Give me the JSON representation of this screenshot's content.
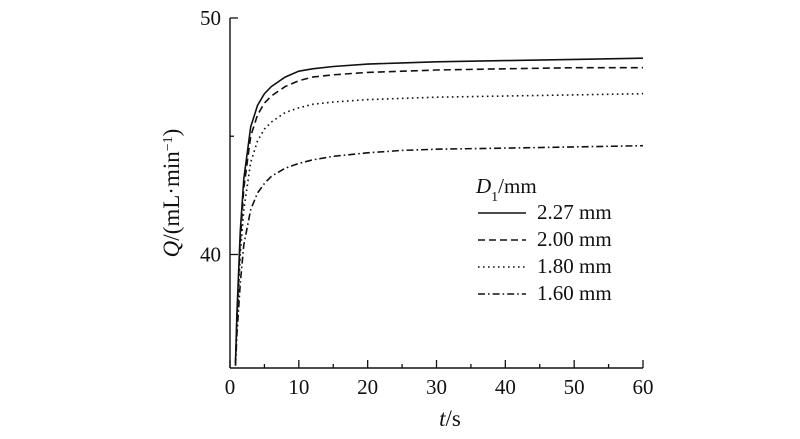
{
  "chart_data": {
    "type": "line",
    "xlabel_var": "t",
    "xlabel_unit": "/s",
    "ylabel_var": "Q",
    "ylabel_unit_pre": "/(mL·min",
    "ylabel_sup": "−1",
    "ylabel_unit_post": ")",
    "xlim": [
      0,
      60
    ],
    "ylim": [
      35.2,
      50
    ],
    "x_ticks": [
      0,
      10,
      20,
      30,
      40,
      50,
      60
    ],
    "x_tick_labels": [
      "0",
      "10",
      "20",
      "30",
      "40",
      "50",
      "60"
    ],
    "y_ticks": [
      40,
      50
    ],
    "y_tick_labels": [
      "40",
      "50"
    ],
    "y_minor_ticks": [
      45
    ],
    "grid": false,
    "legend": {
      "title_var": "D",
      "title_sub": "1",
      "title_unit": "/mm",
      "placement": "right"
    },
    "x": [
      0.8,
      1,
      1.5,
      2,
      3,
      4,
      5,
      6,
      8,
      10,
      12,
      15,
      20,
      25,
      30,
      40,
      50,
      60
    ],
    "series": [
      {
        "name": "2.27 mm",
        "dash": "solid",
        "values": [
          35.4,
          37.5,
          41.0,
          43.2,
          45.4,
          46.3,
          46.8,
          47.1,
          47.5,
          47.75,
          47.85,
          47.95,
          48.05,
          48.1,
          48.15,
          48.2,
          48.25,
          48.3
        ]
      },
      {
        "name": "2.00 mm",
        "dash": "dashed",
        "values": [
          35.4,
          37.3,
          40.6,
          42.8,
          45.0,
          45.9,
          46.4,
          46.7,
          47.1,
          47.35,
          47.5,
          47.6,
          47.7,
          47.75,
          47.8,
          47.85,
          47.9,
          47.9
        ]
      },
      {
        "name": "1.80 mm",
        "dash": "dotted",
        "values": [
          35.3,
          37.0,
          40.0,
          41.9,
          43.9,
          44.8,
          45.3,
          45.6,
          46.0,
          46.2,
          46.35,
          46.45,
          46.55,
          46.6,
          46.65,
          46.7,
          46.75,
          46.8
        ]
      },
      {
        "name": "1.60 mm",
        "dash": "dashdot",
        "values": [
          35.3,
          36.6,
          38.8,
          40.4,
          41.9,
          42.6,
          43.0,
          43.3,
          43.65,
          43.85,
          44.0,
          44.15,
          44.3,
          44.4,
          44.45,
          44.5,
          44.55,
          44.6
        ]
      }
    ]
  }
}
